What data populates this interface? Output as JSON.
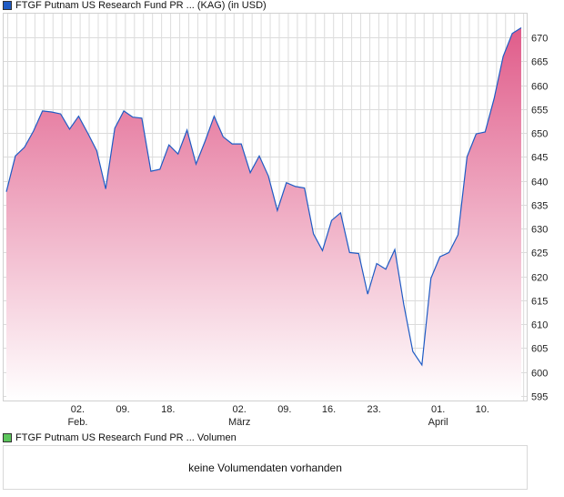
{
  "price_legend": {
    "label": "FTGF Putnam US Research Fund PR ... (KAG) (in USD)",
    "color": "#1f5bc4"
  },
  "volume_legend": {
    "label": "FTGF Putnam US Research Fund PR ... Volumen",
    "color": "#5cc65c"
  },
  "volume_panel": {
    "message": "keine Volumendaten vorhanden"
  },
  "chart_data": {
    "type": "area",
    "title": "FTGF Putnam US Research Fund PR ... (KAG) (in USD)",
    "xlabel": "",
    "ylabel": "",
    "ylim": [
      594,
      674
    ],
    "yticks": [
      595,
      600,
      605,
      610,
      615,
      620,
      625,
      630,
      635,
      640,
      645,
      650,
      655,
      660,
      665,
      670
    ],
    "xticks": [
      {
        "index": 7.9,
        "label": "02.",
        "sublabel": "Feb."
      },
      {
        "index": 12.9,
        "label": "09.",
        "sublabel": ""
      },
      {
        "index": 17.9,
        "label": "18.",
        "sublabel": ""
      },
      {
        "index": 25.8,
        "label": "02.",
        "sublabel": "März"
      },
      {
        "index": 30.8,
        "label": "09.",
        "sublabel": ""
      },
      {
        "index": 35.7,
        "label": "16.",
        "sublabel": ""
      },
      {
        "index": 40.7,
        "label": "23.",
        "sublabel": ""
      },
      {
        "index": 47.8,
        "label": "01.",
        "sublabel": "April"
      },
      {
        "index": 52.7,
        "label": "10.",
        "sublabel": ""
      }
    ],
    "grid": true,
    "line_color": "#1f5bc4",
    "fill_top": "#e05c8a",
    "fill_bottom": "#ffffff",
    "values": [
      637.7,
      645.2,
      647.0,
      650.4,
      654.6,
      654.4,
      654.0,
      650.8,
      653.5,
      650.0,
      646.3,
      638.3,
      651.0,
      654.6,
      653.3,
      653.1,
      642.0,
      642.4,
      647.5,
      645.6,
      650.6,
      643.5,
      648.3,
      653.5,
      649.2,
      647.7,
      647.7,
      641.7,
      645.2,
      641.0,
      633.8,
      639.6,
      638.8,
      638.5,
      628.9,
      625.4,
      631.7,
      633.3,
      625.0,
      624.8,
      616.3,
      622.7,
      621.5,
      625.6,
      614.1,
      604.3,
      601.5,
      619.6,
      624.1,
      625.0,
      628.7,
      645.0,
      649.8,
      650.2,
      657.2,
      666.0,
      670.8,
      672.0
    ]
  }
}
